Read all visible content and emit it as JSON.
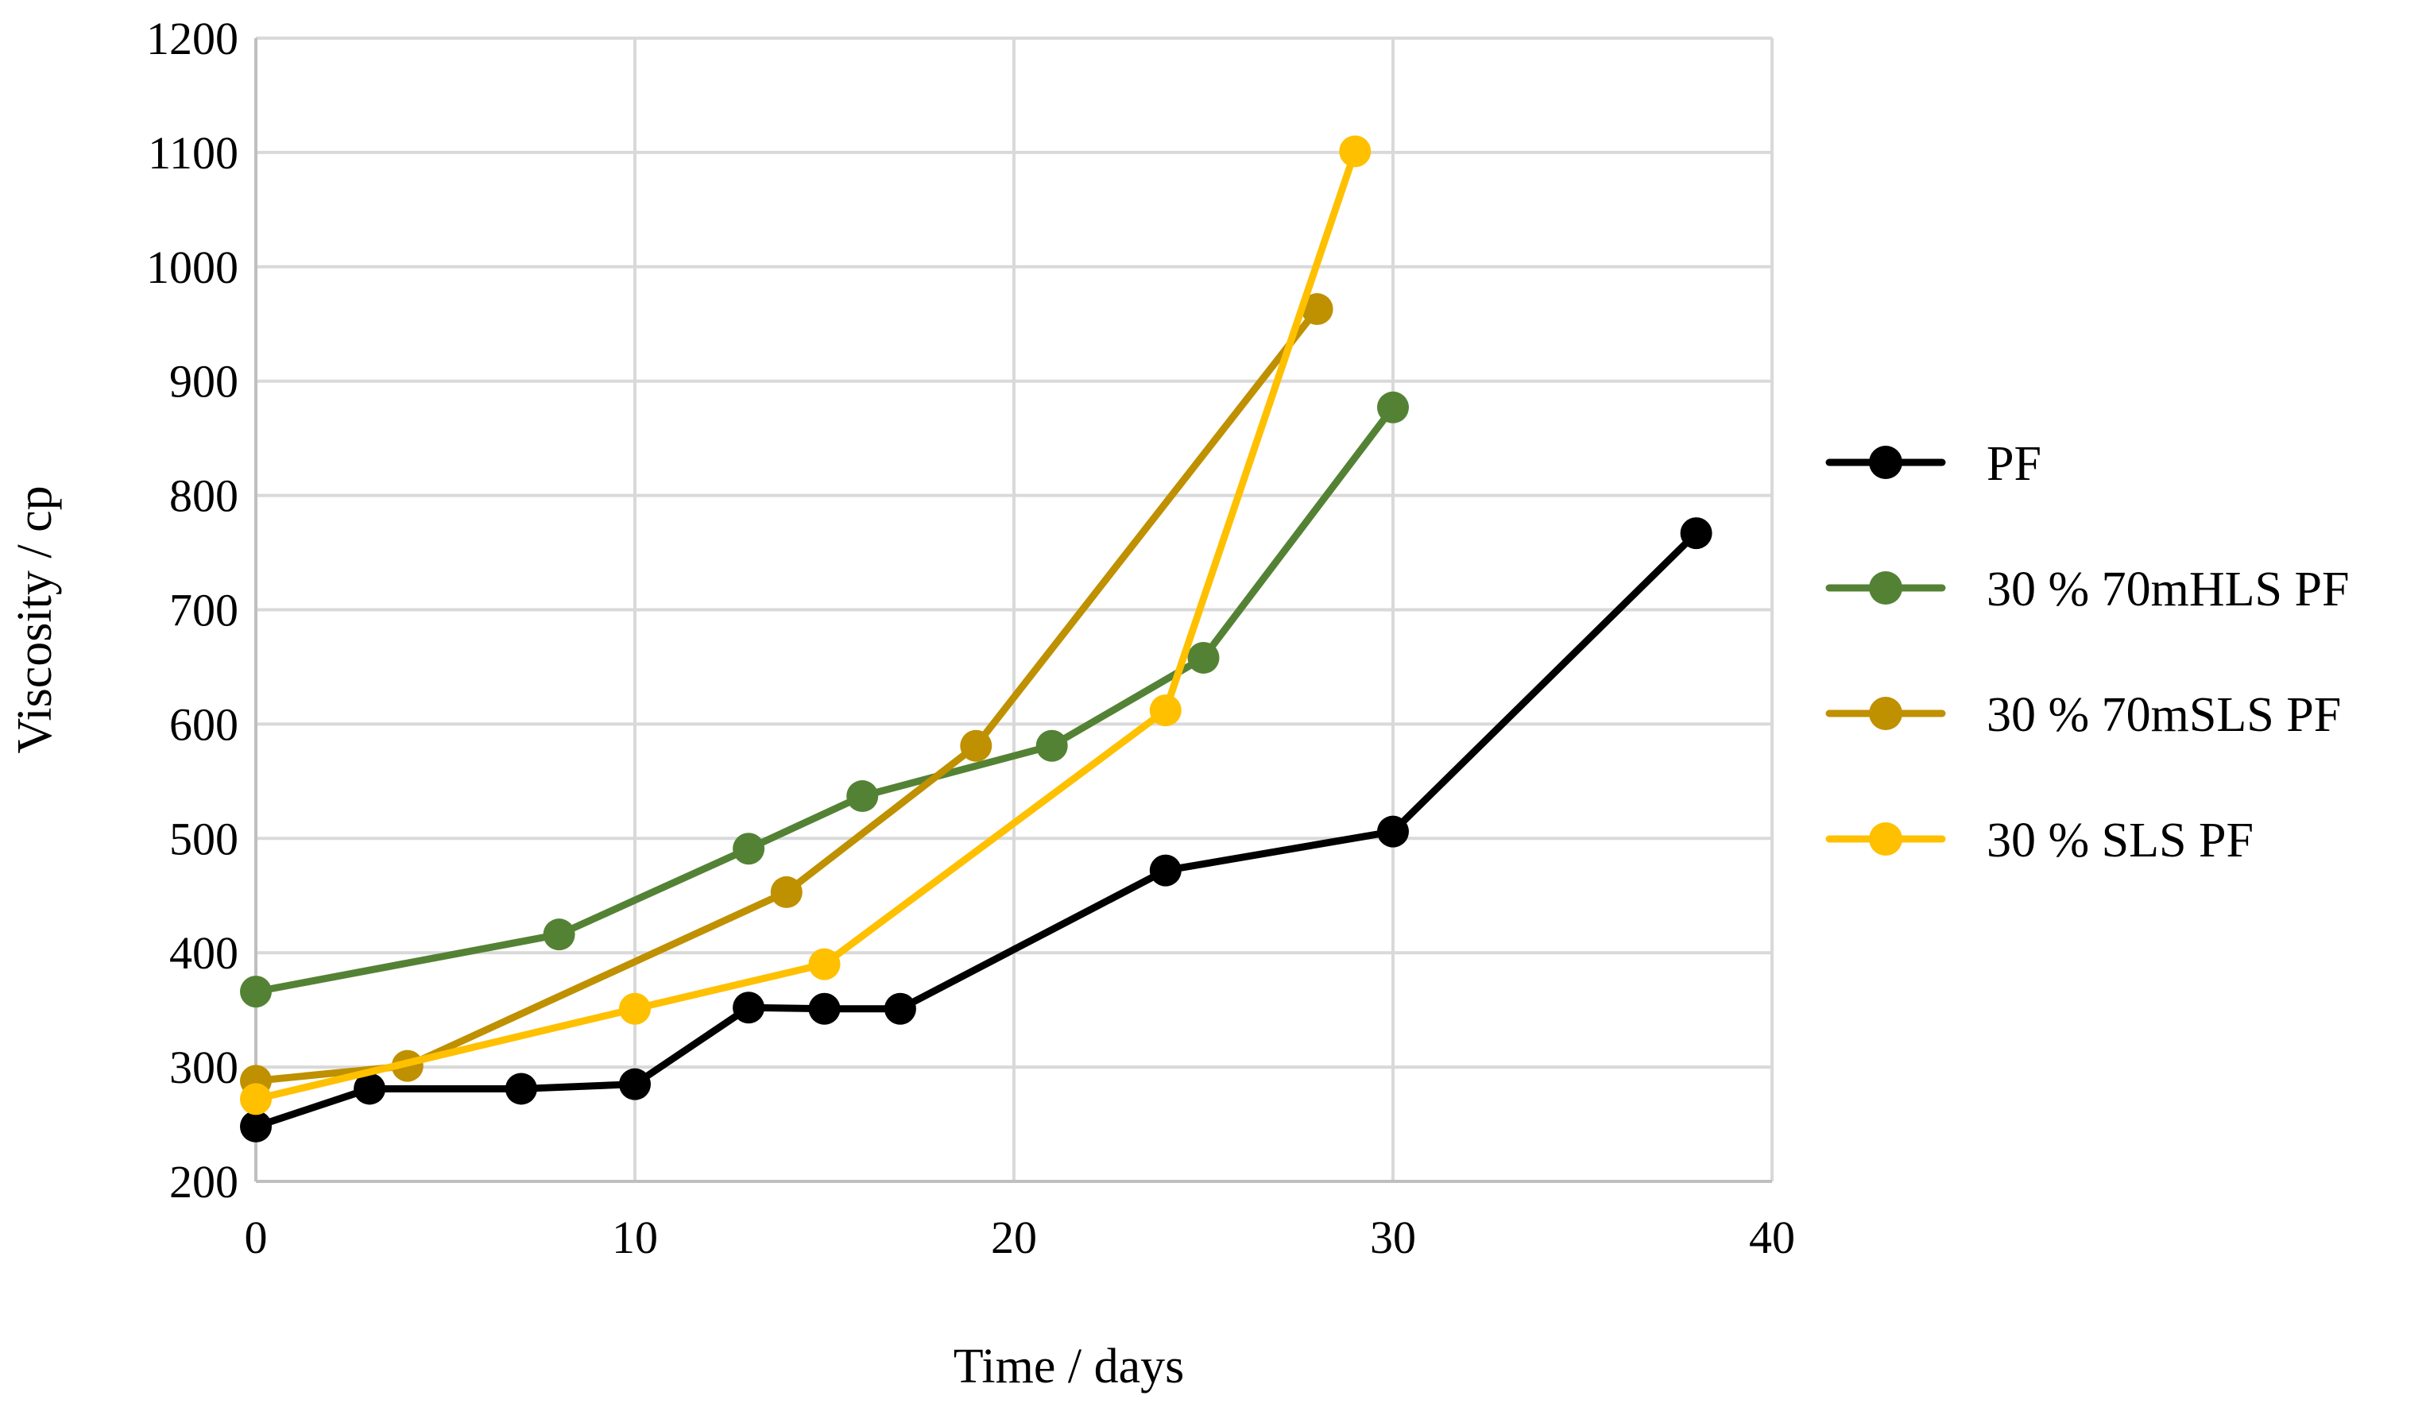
{
  "chart_data": {
    "type": "line",
    "title": "",
    "xlabel": "Time / days",
    "ylabel": "Viscosity / cp",
    "xlim": [
      0,
      40
    ],
    "ylim": [
      200,
      1200
    ],
    "xticks": [
      0,
      10,
      20,
      30,
      40
    ],
    "yticks": [
      200,
      300,
      400,
      500,
      600,
      700,
      800,
      900,
      1000,
      1100,
      1200
    ],
    "grid": true,
    "legend_position": "right",
    "series": [
      {
        "name": "PF",
        "color": "#000000",
        "points": [
          [
            0,
            248
          ],
          [
            3,
            281
          ],
          [
            7,
            281
          ],
          [
            10,
            285
          ],
          [
            13,
            352
          ],
          [
            15,
            351
          ],
          [
            17,
            351
          ],
          [
            24,
            472
          ],
          [
            30,
            506
          ],
          [
            38,
            767
          ]
        ]
      },
      {
        "name": "30 % 70mHLS PF",
        "color": "#548235",
        "points": [
          [
            0,
            366
          ],
          [
            8,
            416
          ],
          [
            13,
            491
          ],
          [
            16,
            537
          ],
          [
            21,
            581
          ],
          [
            25,
            658
          ],
          [
            30,
            877
          ]
        ]
      },
      {
        "name": "30 % 70mSLS PF",
        "color": "#BF9000",
        "points": [
          [
            0,
            288
          ],
          [
            4,
            301
          ],
          [
            14,
            453
          ],
          [
            19,
            581
          ],
          [
            28,
            963
          ]
        ]
      },
      {
        "name": "30 % SLS PF",
        "color": "#FFC000",
        "points": [
          [
            0,
            272
          ],
          [
            10,
            351
          ],
          [
            15,
            390
          ],
          [
            24,
            612
          ],
          [
            29,
            1101
          ]
        ]
      }
    ]
  }
}
